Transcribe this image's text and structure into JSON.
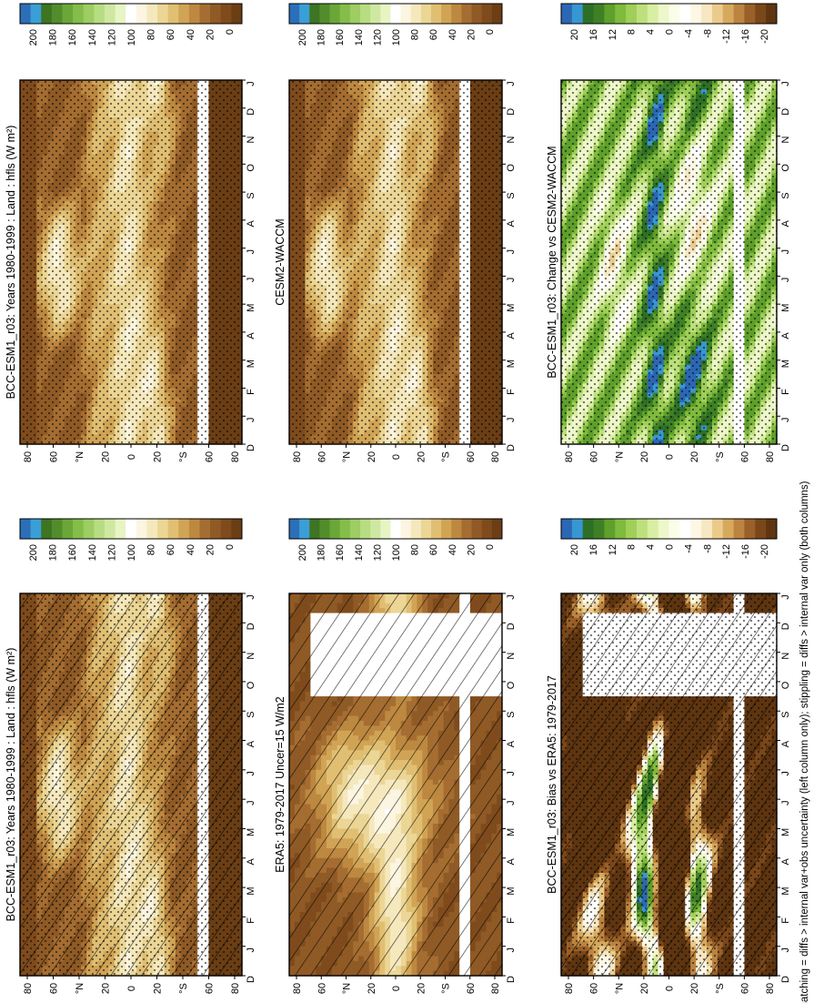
{
  "figure": {
    "footnote": "hatching = diffs > internal var+obs uncertainty (left column only); stippling = diffs > internal var only (both columns)"
  },
  "chart_data": [
    {
      "type": "heatmap",
      "title": "BCC-ESM1_r03: Years 1980-1999 : Land : hfls (W m²)",
      "months": [
        "D",
        "J",
        "F",
        "M",
        "A",
        "M",
        "J",
        "J",
        "A",
        "S",
        "O",
        "N",
        "D",
        "J"
      ],
      "lat_ticks": [
        "80",
        "60",
        "°N",
        "20",
        "0",
        "20",
        "°S",
        "60",
        "80"
      ],
      "colorbar": {
        "ticks": [
          "200",
          "180",
          "160",
          "140",
          "120",
          "100",
          "80",
          "60",
          "40",
          "20",
          "0"
        ]
      },
      "hatching": true,
      "stippling": true,
      "palette": "abs",
      "fieldset": "model"
    },
    {
      "type": "heatmap",
      "title": "BCC-ESM1_r03: Years 1980-1999 : Land : hfls (W m²)",
      "months": [
        "D",
        "J",
        "F",
        "M",
        "A",
        "M",
        "J",
        "J",
        "A",
        "S",
        "O",
        "N",
        "D",
        "J"
      ],
      "lat_ticks": [
        "80",
        "60",
        "°N",
        "20",
        "0",
        "20",
        "°S",
        "60",
        "80"
      ],
      "colorbar": {
        "ticks": [
          "200",
          "180",
          "160",
          "140",
          "120",
          "100",
          "80",
          "60",
          "40",
          "20",
          "0"
        ]
      },
      "hatching": false,
      "stippling": true,
      "palette": "abs",
      "fieldset": "model"
    },
    {
      "type": "heatmap",
      "title": "ERA5: 1979-2017 Uncer=15 W/m2",
      "months": [
        "D",
        "J",
        "F",
        "M",
        "A",
        "M",
        "J",
        "J",
        "A",
        "S",
        "O",
        "N",
        "D",
        "J"
      ],
      "lat_ticks": [
        "80",
        "60",
        "°N",
        "20",
        "0",
        "20",
        "°S",
        "60",
        "80"
      ],
      "colorbar": {
        "ticks": [
          "200",
          "180",
          "160",
          "140",
          "120",
          "100",
          "80",
          "60",
          "40",
          "20",
          "0"
        ]
      },
      "hatching": true,
      "stippling": false,
      "palette": "abs",
      "fieldset": "obs",
      "missing_months": [
        "F",
        "M",
        "A"
      ]
    },
    {
      "type": "heatmap",
      "title": "CESM2-WACCM",
      "months": [
        "D",
        "J",
        "F",
        "M",
        "A",
        "M",
        "J",
        "J",
        "A",
        "S",
        "O",
        "N",
        "D",
        "J"
      ],
      "lat_ticks": [
        "80",
        "60",
        "°N",
        "20",
        "0",
        "20",
        "°S",
        "60",
        "80"
      ],
      "colorbar": {
        "ticks": [
          "200",
          "180",
          "160",
          "140",
          "120",
          "100",
          "80",
          "60",
          "40",
          "20",
          "0"
        ]
      },
      "hatching": false,
      "stippling": true,
      "palette": "abs",
      "fieldset": "model"
    },
    {
      "type": "heatmap",
      "title": "BCC-ESM1_r03: Bias vs ERA5: 1979-2017",
      "months": [
        "D",
        "J",
        "F",
        "M",
        "A",
        "M",
        "J",
        "J",
        "A",
        "S",
        "O",
        "N",
        "D",
        "J"
      ],
      "lat_ticks": [
        "80",
        "60",
        "°N",
        "20",
        "0",
        "20",
        "°S",
        "60",
        "80"
      ],
      "colorbar": {
        "ticks": [
          "20",
          "16",
          "12",
          "8",
          "4",
          "0",
          "-4",
          "-8",
          "-12",
          "-16",
          "-20"
        ]
      },
      "hatching": true,
      "stippling": true,
      "palette": "diff",
      "fieldset": "bias",
      "missing_months": [
        "F",
        "M",
        "A"
      ]
    },
    {
      "type": "heatmap",
      "title": "BCC-ESM1_r03: Change vs CESM2-WACCM",
      "months": [
        "D",
        "J",
        "F",
        "M",
        "A",
        "M",
        "J",
        "J",
        "A",
        "S",
        "O",
        "N",
        "D",
        "J"
      ],
      "lat_ticks": [
        "80",
        "60",
        "°N",
        "20",
        "0",
        "20",
        "°S",
        "60",
        "80"
      ],
      "colorbar": {
        "ticks": [
          "20",
          "16",
          "12",
          "8",
          "4",
          "0",
          "-4",
          "-8",
          "-12",
          "-16",
          "-20"
        ]
      },
      "hatching": false,
      "stippling": true,
      "palette": "diff",
      "fieldset": "change"
    }
  ],
  "palettes": {
    "abs": [
      "#6b3e14",
      "#7f4b1c",
      "#8f5a25",
      "#a56d31",
      "#bd8840",
      "#d1a455",
      "#e0bf73",
      "#ecd696",
      "#f5e8bd",
      "#fbf5e1",
      "#ffffff",
      "#e7f4c4",
      "#cfe8a1",
      "#b7dd82",
      "#9dcd63",
      "#84bd4a",
      "#6ba638",
      "#528d2c",
      "#3d7523",
      "#3a9fd6",
      "#2c6fb8"
    ],
    "diff": [
      "#5e3510",
      "#7a471a",
      "#9a6029",
      "#bc8440",
      "#d7a95d",
      "#ebcb8b",
      "#f7e7c2",
      "#fdf7e6",
      "#ffffff",
      "#fafde8",
      "#eef7cb",
      "#d8eea2",
      "#bde07c",
      "#9fcf59",
      "#7fbb3d",
      "#5f9f2c",
      "#3f8026",
      "#2e6f26",
      "#3896d2",
      "#2c67b4"
    ]
  }
}
